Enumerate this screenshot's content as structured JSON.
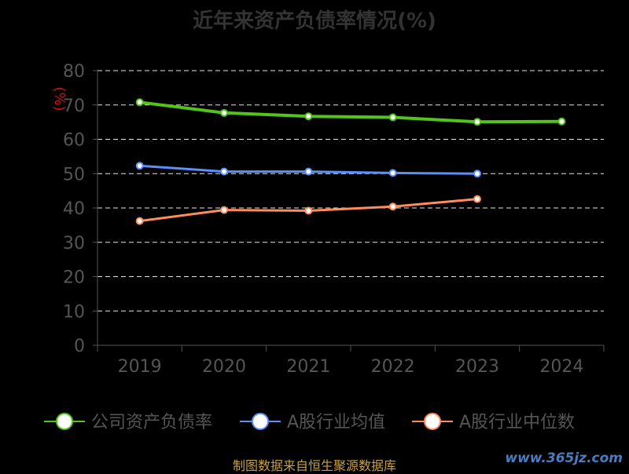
{
  "chart_data": {
    "type": "line",
    "title": "近年来资产负债率情况(%)",
    "ylabel": "(%)",
    "categories": [
      "2019",
      "2020",
      "2021",
      "2022",
      "2023",
      "2024"
    ],
    "ylim": [
      0,
      80
    ],
    "yticks": [
      "0",
      "10",
      "20",
      "30",
      "40",
      "50",
      "60",
      "70",
      "80"
    ],
    "grid": true,
    "legend_position": "bottom",
    "series": [
      {
        "name": "公司资产负债率",
        "color": "#52c41a",
        "values": [
          70.8,
          67.7,
          66.7,
          66.4,
          65.1,
          65.2
        ]
      },
      {
        "name": "A股行业均值",
        "color": "#5b8ff9",
        "values": [
          52.3,
          50.6,
          50.6,
          50.2,
          50.0,
          null
        ]
      },
      {
        "name": "A股行业中位数",
        "color": "#ff8c5a",
        "values": [
          36.2,
          39.4,
          39.2,
          40.4,
          42.6,
          null
        ]
      }
    ]
  },
  "footer": {
    "source": "制图数据来自恒生聚源数据库",
    "watermark": "www.365jz.com"
  }
}
